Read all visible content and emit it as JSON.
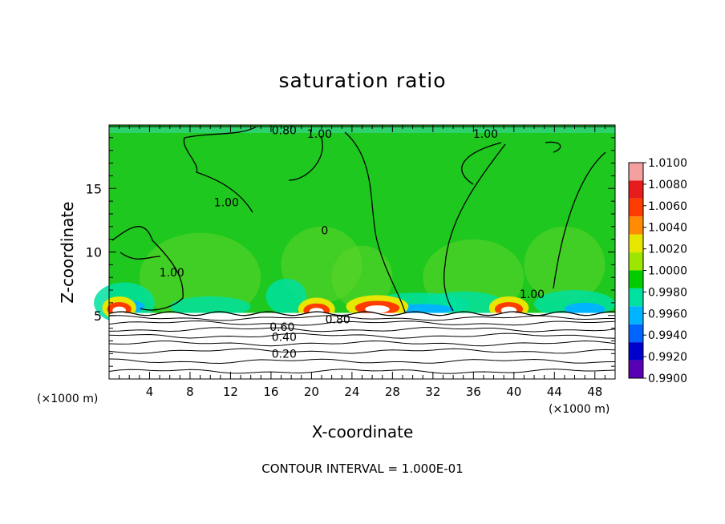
{
  "chart_data": {
    "type": "heatmap",
    "title": "saturation ratio",
    "xlabel": "X-coordinate",
    "ylabel": "Z-coordinate",
    "x_unit_label": "(×1000 m)",
    "xlim": [
      0,
      50
    ],
    "ylim": [
      0,
      20
    ],
    "x_ticks": [
      4,
      8,
      12,
      16,
      20,
      24,
      28,
      32,
      36,
      40,
      44,
      48
    ],
    "y_ticks": [
      5,
      10,
      15
    ],
    "colorbar": {
      "levels": [
        "1.0100",
        "1.0080",
        "1.0060",
        "1.0040",
        "1.0020",
        "1.0000",
        "0.9980",
        "0.9960",
        "0.9940",
        "0.9920",
        "0.9900"
      ],
      "colors": [
        "#f4a0a0",
        "#e81c1c",
        "#ff3c00",
        "#ff8c00",
        "#e6e600",
        "#9ce600",
        "#00cc00",
        "#00e0a0",
        "#00b4ff",
        "#0064ff",
        "#0000cc",
        "#5a00b4"
      ]
    },
    "contour_interval_text": "CONTOUR INTERVAL = 1.000E-01",
    "contour_labels": [
      {
        "text": "0.80",
        "x": 17.3,
        "z": 19.6
      },
      {
        "text": "1.00",
        "x": 20.8,
        "z": 19.3
      },
      {
        "text": "1.00",
        "x": 37.2,
        "z": 19.3
      },
      {
        "text": "1.00",
        "x": 11.6,
        "z": 13.9
      },
      {
        "text": "0",
        "x": 21.3,
        "z": 11.7
      },
      {
        "text": "1.00",
        "x": 6.2,
        "z": 8.4
      },
      {
        "text": "1.00",
        "x": 41.8,
        "z": 6.7
      },
      {
        "text": "0.80",
        "x": 22.6,
        "z": 4.7
      },
      {
        "text": "0.60",
        "x": 17.1,
        "z": 4.1
      },
      {
        "text": "0.40",
        "x": 17.3,
        "z": 3.3
      },
      {
        "text": "0.20",
        "x": 17.3,
        "z": 2.0
      }
    ],
    "stratospheric_layers_z": [
      0.6,
      1.4,
      2.2,
      2.8,
      3.4,
      3.9,
      4.4,
      4.8
    ],
    "grid": false
  }
}
